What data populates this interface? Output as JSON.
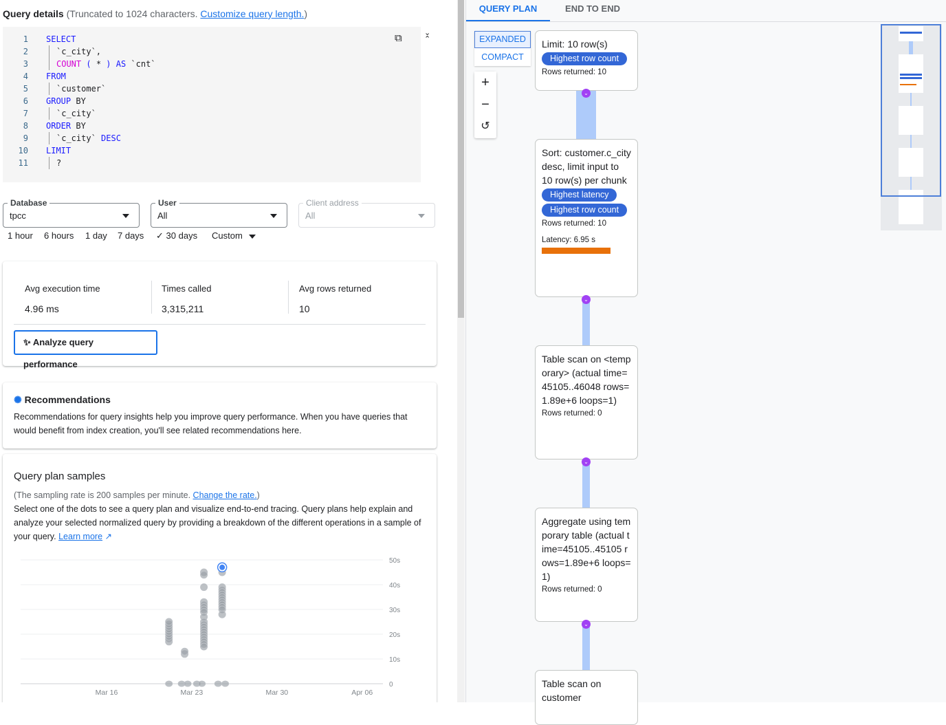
{
  "query_details": {
    "title": "Query details",
    "note": "(Truncated to 1024 characters.",
    "link": "Customize query length.",
    "close_paren": ")",
    "lines": [
      {
        "n": "1",
        "t": [
          [
            "kw",
            "SELECT"
          ]
        ],
        "indent": false
      },
      {
        "n": "2",
        "t": [
          [
            "pl",
            "`c_city`,"
          ]
        ],
        "indent": true
      },
      {
        "n": "3",
        "t": [
          [
            "fn",
            "COUNT"
          ],
          [
            "kw",
            " ( "
          ],
          [
            "pl",
            "*"
          ],
          [
            "kw",
            " ) AS "
          ],
          [
            "pl",
            "`cnt`"
          ]
        ],
        "indent": true
      },
      {
        "n": "4",
        "t": [
          [
            "kw",
            "FROM"
          ]
        ],
        "indent": false
      },
      {
        "n": "5",
        "t": [
          [
            "pl",
            "`customer`"
          ]
        ],
        "indent": true
      },
      {
        "n": "6",
        "t": [
          [
            "kw",
            "GROUP"
          ],
          [
            "pl",
            " BY"
          ]
        ],
        "indent": false
      },
      {
        "n": "7",
        "t": [
          [
            "pl",
            "`c_city`"
          ]
        ],
        "indent": true
      },
      {
        "n": "8",
        "t": [
          [
            "kw",
            "ORDER"
          ],
          [
            "pl",
            " BY"
          ]
        ],
        "indent": false
      },
      {
        "n": "9",
        "t": [
          [
            "pl",
            "`c_city` "
          ],
          [
            "kw",
            "DESC"
          ]
        ],
        "indent": true
      },
      {
        "n": "10",
        "t": [
          [
            "kw",
            "LIMIT"
          ]
        ],
        "indent": false
      },
      {
        "n": "11",
        "t": [
          [
            "pl",
            "?"
          ]
        ],
        "indent": true
      }
    ]
  },
  "filters": {
    "database": {
      "label": "Database",
      "value": "tpcc"
    },
    "user": {
      "label": "User",
      "value": "All"
    },
    "client": {
      "label": "Client address",
      "value": "All"
    }
  },
  "time_ranges": [
    "1 hour",
    "6 hours",
    "1 day",
    "7 days",
    "30 days",
    "Custom"
  ],
  "selected_range": "30 days",
  "stats": [
    {
      "label": "Avg execution time",
      "value": "4.96 ms"
    },
    {
      "label": "Times called",
      "value": "3,315,211"
    },
    {
      "label": "Avg rows returned",
      "value": "10"
    }
  ],
  "analyze_button": "Analyze query performance",
  "recommendations": {
    "title": "Recommendations",
    "text": "Recommendations for query insights help you improve query performance. When you have queries that would benefit from index creation, you'll see related recommendations here."
  },
  "samples": {
    "title": "Query plan samples",
    "rate_note": "(The sampling rate is 200 samples per minute.",
    "rate_link": "Change the rate.",
    "close_paren": ")",
    "desc": "Select one of the dots to see a query plan and visualize end-to-end tracing. Query plans help explain and analyze your selected normalized query by providing a breakdown of the different operations in a sample of your query.",
    "learn_more": "Learn more"
  },
  "chart_data": {
    "type": "scatter",
    "x_ticks": [
      "Mar 16",
      "Mar 23",
      "Mar 30",
      "Apr 06"
    ],
    "y_ticks": [
      "0",
      "10s",
      "20s",
      "30s",
      "40s",
      "50s"
    ],
    "ylim": [
      0,
      50
    ],
    "grid": true,
    "points": [
      {
        "x": "Mar 21 03:00",
        "y": [
          17,
          18,
          19,
          20,
          21,
          22,
          23,
          24,
          25,
          0
        ]
      },
      {
        "x": "Mar 22 10:00",
        "y": [
          12,
          13
        ]
      },
      {
        "x": "Mar 22 04:00",
        "y": [
          0
        ]
      },
      {
        "x": "Mar 22 16:00",
        "y": [
          0
        ]
      },
      {
        "x": "Mar 23 10:00",
        "y": [
          0
        ]
      },
      {
        "x": "Mar 23 20:00",
        "y": [
          0
        ]
      },
      {
        "x": "Mar 24 00:00",
        "y": [
          45,
          44,
          39,
          33,
          32,
          31,
          30,
          29,
          27,
          25,
          24,
          23,
          22,
          21,
          20,
          19,
          18,
          17,
          16,
          15
        ]
      },
      {
        "x": "Mar 25 12:00",
        "y": [
          45,
          39,
          38,
          37,
          36,
          35,
          34,
          33,
          32,
          31,
          30,
          28
        ]
      },
      {
        "x": "Mar 25 04:00",
        "y": [
          0
        ]
      },
      {
        "x": "Mar 25 18:00",
        "y": [
          0
        ]
      }
    ],
    "selected": {
      "x": "Mar 25 12:00",
      "y": 47
    },
    "colors": {
      "point": "#9aa0a6",
      "selected": "#4285f4"
    }
  },
  "plan": {
    "tabs": [
      "QUERY PLAN",
      "END TO END"
    ],
    "active_tab": "QUERY PLAN",
    "modes": [
      "EXPANDED",
      "COMPACT"
    ],
    "active_mode": "EXPANDED",
    "nodes": [
      {
        "title": "Limit: 10 row(s)",
        "chips": [
          "Highest row count"
        ],
        "rows": "Rows returned: 10"
      },
      {
        "title": "Sort: customer.c_city desc, limit input to 10 row(s) per chunk",
        "chips": [
          "Highest latency",
          "Highest row count"
        ],
        "rows": "Rows returned: 10",
        "latency": "Latency: 6.95 s"
      },
      {
        "title": "Table scan on <temporary> (actual time=45105..46048 rows=1.89e+6 loops=1)",
        "chips": [],
        "rows": "Rows returned: 0"
      },
      {
        "title": "Aggregate using temporary table (actual time=45105..45105 rows=1.89e+6 loops=1)",
        "chips": [],
        "rows": "Rows returned: 0"
      },
      {
        "title": "Table scan on customer",
        "chips": [],
        "rows": ""
      }
    ],
    "latency_color": "#e8710a"
  }
}
